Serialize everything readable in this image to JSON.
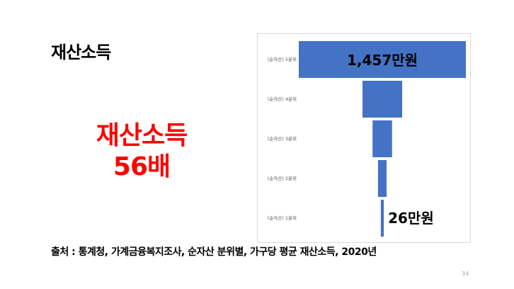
{
  "slide": {
    "title": "재산소득",
    "callout_line1": "재산소득",
    "callout_line2": "56배",
    "source": "출처 : 통계청, 가계금융복지조사, 순자산 분위별, 가구당 평균 재산소득,  2020년",
    "page_number": "34"
  },
  "colors": {
    "bar": "#4472c4",
    "callout": "#ff0000"
  },
  "chart_data": {
    "type": "bar",
    "orientation": "horizontal-centered",
    "unit": "만원",
    "categories": [
      "(순자산) 5분위",
      "(순자산) 4분위",
      "(순자산) 3분위",
      "(순자산) 2분위",
      "(순자산) 1분위"
    ],
    "values": [
      1457,
      346,
      170,
      75,
      26
    ],
    "data_labels": [
      "1,457만원",
      "",
      "",
      "",
      "26만원"
    ],
    "grid": false,
    "legend": "none"
  }
}
